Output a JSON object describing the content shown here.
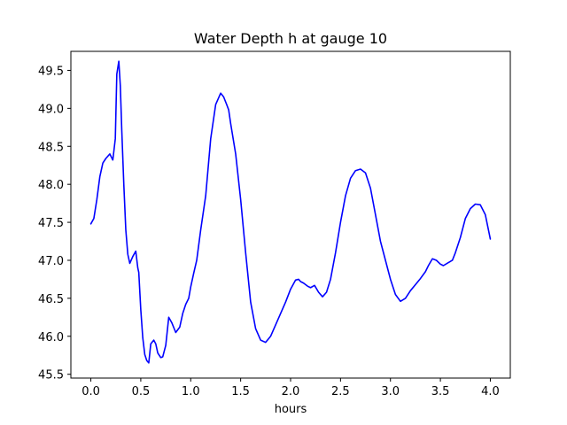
{
  "chart_data": {
    "type": "line",
    "title": "Water Depth h at gauge 10",
    "xlabel": "hours",
    "ylabel": "",
    "xlim": [
      -0.2,
      4.2
    ],
    "ylim": [
      45.45,
      49.75
    ],
    "x_ticks": [
      0.0,
      0.5,
      1.0,
      1.5,
      2.0,
      2.5,
      3.0,
      3.5,
      4.0
    ],
    "x_tick_labels": [
      "0.0",
      "0.5",
      "1.0",
      "1.5",
      "2.0",
      "2.5",
      "3.0",
      "3.5",
      "4.0"
    ],
    "y_ticks": [
      45.5,
      46.0,
      46.5,
      47.0,
      47.5,
      48.0,
      48.5,
      49.0,
      49.5
    ],
    "y_tick_labels": [
      "45.5",
      "46.0",
      "46.5",
      "47.0",
      "47.5",
      "48.0",
      "48.5",
      "49.0",
      "49.5"
    ],
    "grid": false,
    "legend": "none",
    "series": [
      {
        "color": "#0000ff",
        "x": [
          0.0,
          0.03,
          0.06,
          0.09,
          0.12,
          0.15,
          0.19,
          0.22,
          0.245,
          0.26,
          0.28,
          0.295,
          0.31,
          0.33,
          0.35,
          0.37,
          0.39,
          0.42,
          0.45,
          0.47,
          0.48,
          0.5,
          0.52,
          0.54,
          0.56,
          0.58,
          0.6,
          0.63,
          0.65,
          0.67,
          0.7,
          0.72,
          0.75,
          0.78,
          0.81,
          0.85,
          0.89,
          0.92,
          0.95,
          0.98,
          1.0,
          1.03,
          1.06,
          1.1,
          1.15,
          1.2,
          1.25,
          1.3,
          1.33,
          1.36,
          1.38,
          1.4,
          1.45,
          1.5,
          1.55,
          1.6,
          1.65,
          1.7,
          1.75,
          1.8,
          1.85,
          1.9,
          1.95,
          2.0,
          2.05,
          2.08,
          2.1,
          2.13,
          2.17,
          2.2,
          2.24,
          2.28,
          2.32,
          2.36,
          2.4,
          2.45,
          2.5,
          2.55,
          2.6,
          2.65,
          2.7,
          2.75,
          2.8,
          2.85,
          2.9,
          2.95,
          3.0,
          3.05,
          3.1,
          3.15,
          3.2,
          3.25,
          3.3,
          3.35,
          3.38,
          3.42,
          3.46,
          3.5,
          3.53,
          3.58,
          3.62,
          3.65,
          3.7,
          3.75,
          3.8,
          3.85,
          3.9,
          3.95,
          4.0
        ],
        "y": [
          47.48,
          47.55,
          47.8,
          48.1,
          48.28,
          48.34,
          48.4,
          48.32,
          48.6,
          49.45,
          49.62,
          49.3,
          48.7,
          48.0,
          47.4,
          47.08,
          46.96,
          47.05,
          47.12,
          46.9,
          46.84,
          46.35,
          45.98,
          45.76,
          45.68,
          45.65,
          45.9,
          45.95,
          45.9,
          45.78,
          45.72,
          45.73,
          45.88,
          46.25,
          46.18,
          46.05,
          46.12,
          46.3,
          46.42,
          46.5,
          46.65,
          46.83,
          47.0,
          47.4,
          47.85,
          48.6,
          49.05,
          49.2,
          49.15,
          49.05,
          48.98,
          48.8,
          48.4,
          47.8,
          47.1,
          46.45,
          46.1,
          45.95,
          45.92,
          46.0,
          46.15,
          46.3,
          46.45,
          46.62,
          46.74,
          46.75,
          46.72,
          46.7,
          46.66,
          46.64,
          46.67,
          46.58,
          46.52,
          46.58,
          46.75,
          47.1,
          47.5,
          47.85,
          48.08,
          48.18,
          48.2,
          48.15,
          47.95,
          47.6,
          47.25,
          47.0,
          46.75,
          46.55,
          46.46,
          46.5,
          46.6,
          46.68,
          46.76,
          46.85,
          46.93,
          47.02,
          47.0,
          46.95,
          46.93,
          46.97,
          47.0,
          47.1,
          47.3,
          47.55,
          47.68,
          47.74,
          47.73,
          47.6,
          47.28
        ]
      }
    ]
  }
}
